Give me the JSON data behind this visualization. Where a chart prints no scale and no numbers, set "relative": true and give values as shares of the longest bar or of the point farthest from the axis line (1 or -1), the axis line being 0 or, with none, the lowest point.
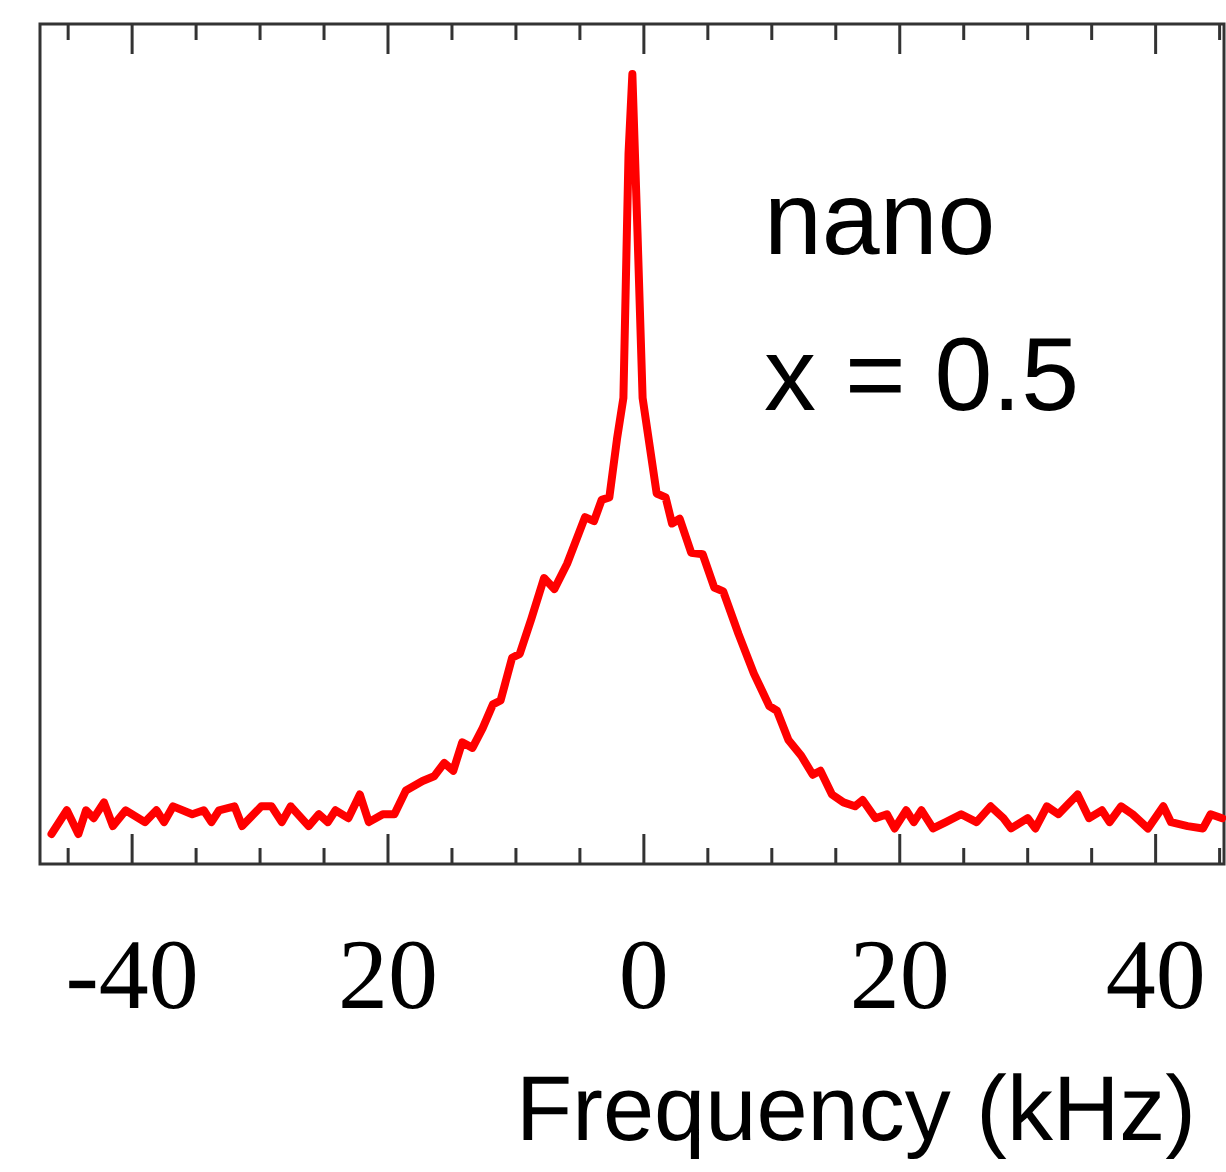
{
  "chart_data": {
    "type": "line",
    "relative": true,
    "xlabel": "Frequency (kHz)",
    "annotations": [
      "nano",
      "x = 0.5"
    ],
    "xlim": [
      -47.2,
      45.5
    ],
    "xticks": [
      {
        "value": -45,
        "label": null
      },
      {
        "value": -40,
        "label": "-40"
      },
      {
        "value": -35,
        "label": null
      },
      {
        "value": -30,
        "label": null
      },
      {
        "value": -25,
        "label": null
      },
      {
        "value": -20,
        "label": "20"
      },
      {
        "value": -15,
        "label": null
      },
      {
        "value": -10,
        "label": null
      },
      {
        "value": -5,
        "label": null
      },
      0,
      {
        "value": 5,
        "label": null
      },
      {
        "value": 10,
        "label": null
      },
      {
        "value": 15,
        "label": null
      },
      20,
      {
        "value": 25,
        "label": null
      },
      {
        "value": 30,
        "label": null
      },
      {
        "value": 35,
        "label": null
      },
      40,
      {
        "value": 45,
        "label": null
      }
    ],
    "marker": "none",
    "line_style": "solid",
    "grid": false,
    "series": [
      {
        "color": "#ff0000",
        "x": [
          -46.3,
          -45.1,
          -44.2,
          -43.6,
          -43.0,
          -42.2,
          -41.5,
          -40.5,
          -39.0,
          -38.1,
          -37.5,
          -36.8,
          -35.3,
          -34.4,
          -33.8,
          -33.2,
          -32.0,
          -31.4,
          -29.9,
          -29.1,
          -28.3,
          -27.6,
          -26.2,
          -25.4,
          -24.7,
          -24.1,
          -23.1,
          -22.2,
          -21.5,
          -20.4,
          -19.5,
          -18.6,
          -17.3,
          -16.4,
          -15.6,
          -14.9,
          -14.2,
          -13.4,
          -12.6,
          -11.8,
          -11.2,
          -10.3,
          -9.7,
          -8.8,
          -7.8,
          -7.0,
          -6.0,
          -4.6,
          -3.9,
          -3.3,
          -2.7,
          -2.1,
          -1.6,
          -1.2,
          -0.9,
          -0.5,
          -0.1,
          1.0,
          1.7,
          2.2,
          2.8,
          3.7,
          4.6,
          5.5,
          6.2,
          7.4,
          8.6,
          9.8,
          10.4,
          11.3,
          12.3,
          13.2,
          13.8,
          14.7,
          15.6,
          16.5,
          17.1,
          18.1,
          19.0,
          19.6,
          20.5,
          21.1,
          21.7,
          22.6,
          23.6,
          24.8,
          26.0,
          27.1,
          28.1,
          28.7,
          30.0,
          30.6,
          31.5,
          32.4,
          33.0,
          33.9,
          34.8,
          35.8,
          36.4,
          37.3,
          38.2,
          39.4,
          40.6,
          41.2,
          42.5,
          43.7,
          44.3,
          45.2
        ],
        "values": [
          0.038,
          0.068,
          0.038,
          0.068,
          0.058,
          0.078,
          0.048,
          0.068,
          0.053,
          0.068,
          0.053,
          0.073,
          0.063,
          0.068,
          0.053,
          0.068,
          0.073,
          0.048,
          0.073,
          0.073,
          0.053,
          0.073,
          0.048,
          0.063,
          0.053,
          0.068,
          0.058,
          0.088,
          0.053,
          0.063,
          0.063,
          0.093,
          0.105,
          0.111,
          0.128,
          0.118,
          0.154,
          0.147,
          0.172,
          0.202,
          0.207,
          0.261,
          0.266,
          0.31,
          0.362,
          0.348,
          0.38,
          0.439,
          0.434,
          0.461,
          0.464,
          0.538,
          0.59,
          0.899,
          1.0,
          0.8,
          0.59,
          0.469,
          0.464,
          0.431,
          0.437,
          0.394,
          0.392,
          0.35,
          0.345,
          0.291,
          0.241,
          0.2,
          0.194,
          0.157,
          0.137,
          0.113,
          0.118,
          0.088,
          0.078,
          0.073,
          0.081,
          0.058,
          0.063,
          0.045,
          0.068,
          0.053,
          0.068,
          0.045,
          0.053,
          0.063,
          0.053,
          0.073,
          0.058,
          0.045,
          0.058,
          0.045,
          0.073,
          0.063,
          0.073,
          0.088,
          0.058,
          0.068,
          0.053,
          0.073,
          0.063,
          0.045,
          0.073,
          0.053,
          0.048,
          0.045,
          0.063,
          0.058
        ]
      }
    ]
  }
}
